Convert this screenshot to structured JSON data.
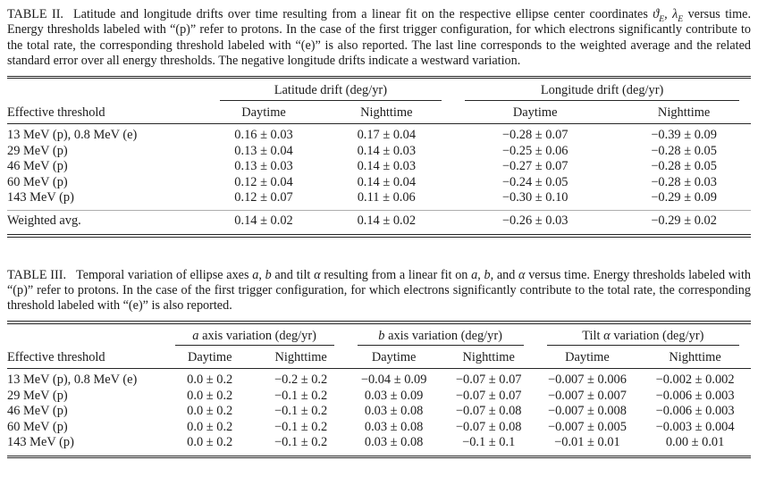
{
  "colors": {
    "ink": "#1a1a1a",
    "rule": "#262626",
    "separator_rule": "#aeaeae",
    "background": "#ffffff"
  },
  "table2": {
    "caption_segments": [
      {
        "t": "TABLE II.",
        "style": "label"
      },
      {
        "t": "Latitude and longitude drifts over time resulting from a linear fit on the respective ellipse center coordinates "
      },
      {
        "t": "ϑ",
        "style": "i"
      },
      {
        "t": "E",
        "style": "sub"
      },
      {
        "t": ", "
      },
      {
        "t": "λ",
        "style": "i"
      },
      {
        "t": "E",
        "style": "sub"
      },
      {
        "t": " versus time. Energy thresholds labeled with “(p)” refer to protons. In the case of the first trigger configuration, for which electrons significantly contribute to the total rate, the corresponding threshold labeled with “(e)” is also reported. The last line corresponds to the weighted average and the related standard error over all energy thresholds. The negative longitude drifts indicate a westward variation."
      }
    ],
    "col1_header": "Effective threshold",
    "groups": [
      {
        "segments": [
          {
            "t": "Latitude drift (deg/yr)"
          }
        ]
      },
      {
        "segments": [
          {
            "t": "Longitude drift (deg/yr)"
          }
        ]
      }
    ],
    "subheaders": [
      "Daytime",
      "Nighttime",
      "Daytime",
      "Nighttime"
    ],
    "rows": [
      [
        "13 MeV (p), 0.8 MeV (e)",
        "0.16 ± 0.03",
        "0.17 ± 0.04",
        "−0.28 ± 0.07",
        "−0.39 ± 0.09"
      ],
      [
        "29 MeV (p)",
        "0.13 ± 0.04",
        "0.14 ± 0.03",
        "−0.25 ± 0.06",
        "−0.28 ± 0.05"
      ],
      [
        "46 MeV (p)",
        "0.13 ± 0.03",
        "0.14 ± 0.03",
        "−0.27 ± 0.07",
        "−0.28 ± 0.05"
      ],
      [
        "60 MeV (p)",
        "0.12 ± 0.04",
        "0.14 ± 0.04",
        "−0.24 ± 0.05",
        "−0.28 ± 0.03"
      ],
      [
        "143 MeV (p)",
        "0.12 ± 0.07",
        "0.11 ± 0.06",
        "−0.30 ± 0.10",
        "−0.29 ± 0.09"
      ]
    ],
    "footer_rows": [
      [
        "Weighted avg.",
        "0.14 ± 0.02",
        "0.14 ± 0.02",
        "−0.26 ± 0.03",
        "−0.29 ± 0.02"
      ]
    ]
  },
  "table3": {
    "caption_segments": [
      {
        "t": "TABLE III.",
        "style": "label"
      },
      {
        "t": "Temporal variation of ellipse axes "
      },
      {
        "t": "a",
        "style": "i"
      },
      {
        "t": ", "
      },
      {
        "t": "b",
        "style": "i"
      },
      {
        "t": " and tilt "
      },
      {
        "t": "α",
        "style": "i"
      },
      {
        "t": " resulting from a linear fit on "
      },
      {
        "t": "a",
        "style": "i"
      },
      {
        "t": ", "
      },
      {
        "t": "b",
        "style": "i"
      },
      {
        "t": ", and "
      },
      {
        "t": "α",
        "style": "i"
      },
      {
        "t": " versus time. Energy thresholds labeled with “(p)” refer to protons. In the case of the first trigger configuration, for which electrons significantly contribute to the total rate, the corresponding threshold labeled with “(e)” is also reported."
      }
    ],
    "col1_header": "Effective threshold",
    "groups": [
      {
        "segments": [
          {
            "t": "a",
            "style": "i"
          },
          {
            "t": " axis variation (deg/yr)"
          }
        ]
      },
      {
        "segments": [
          {
            "t": "b",
            "style": "i"
          },
          {
            "t": " axis variation (deg/yr)"
          }
        ]
      },
      {
        "segments": [
          {
            "t": "Tilt "
          },
          {
            "t": "α",
            "style": "i"
          },
          {
            "t": " variation (deg/yr)"
          }
        ]
      }
    ],
    "subheaders": [
      "Daytime",
      "Nighttime",
      "Daytime",
      "Nighttime",
      "Daytime",
      "Nighttime"
    ],
    "rows": [
      [
        "13 MeV (p), 0.8 MeV (e)",
        "0.0 ± 0.2",
        "−0.2 ± 0.2",
        "−0.04 ± 0.09",
        "−0.07 ± 0.07",
        "−0.007 ± 0.006",
        "−0.002 ± 0.002"
      ],
      [
        "29 MeV (p)",
        "0.0 ± 0.2",
        "−0.1 ± 0.2",
        "0.03 ± 0.09",
        "−0.07 ± 0.07",
        "−0.007 ± 0.007",
        "−0.006 ± 0.003"
      ],
      [
        "46 MeV (p)",
        "0.0 ± 0.2",
        "−0.1 ± 0.2",
        "0.03 ± 0.08",
        "−0.07 ± 0.08",
        "−0.007 ± 0.008",
        "−0.006 ± 0.003"
      ],
      [
        "60 MeV (p)",
        "0.0 ± 0.2",
        "−0.1 ± 0.2",
        "0.03 ± 0.08",
        "−0.07 ± 0.08",
        "−0.007 ± 0.005",
        "−0.003 ± 0.004"
      ],
      [
        "143 MeV (p)",
        "0.0 ± 0.2",
        "−0.1 ± 0.2",
        "0.03 ± 0.08",
        "−0.1 ± 0.1",
        "−0.01 ± 0.01",
        "0.00 ± 0.01"
      ]
    ]
  }
}
